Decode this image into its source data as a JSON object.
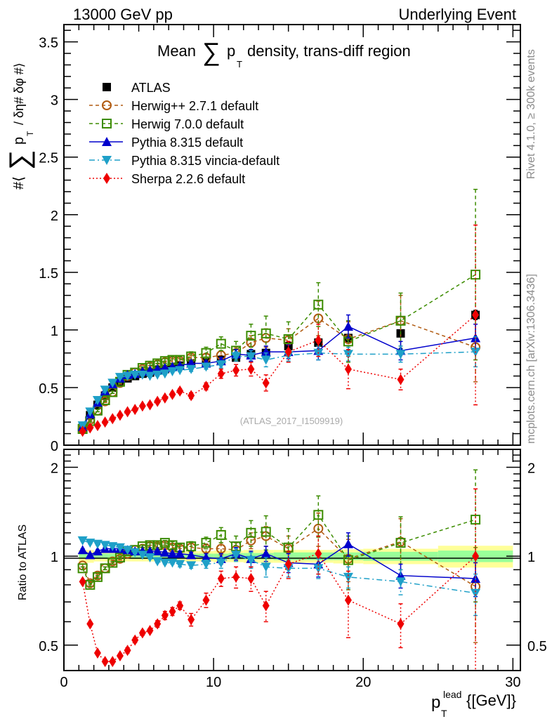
{
  "header": {
    "left": "13000 GeV pp",
    "right": "Underlying Event"
  },
  "side_labels": {
    "rivet": "Rivet 4.1.0, ≥ 300k events",
    "mcplots": "mcplots.cern.ch [arXiv:1306.3436]"
  },
  "chart_data": [
    {
      "type": "scatter",
      "title_prefix": "Mean",
      "title_sum": "∑",
      "title_p": "p",
      "title_sub": "T",
      "title_suffix": "density, trans-diff region",
      "ylabel_parts": [
        "#⟨",
        "∑",
        "p",
        "T",
        "/ δη# δφ #⟩"
      ],
      "xlabel": "p",
      "xlabel_sup": "lead",
      "xlabel_sub": "T",
      "xlabel_unit": "{[GeV]}",
      "watermark": "(ATLAS_2017_I1509919)",
      "xlim": [
        0,
        30.5
      ],
      "ylim": [
        0,
        3.65
      ],
      "yticks": [
        0,
        0.5,
        1,
        1.5,
        2,
        2.5,
        3,
        3.5
      ],
      "ytick_labels": [
        "0",
        "0.5",
        "1",
        "1.5",
        "2",
        "2.5",
        "3",
        "3.5"
      ],
      "xticks": [
        0,
        10,
        20,
        30
      ],
      "xtick_labels": [
        "0",
        "10",
        "20",
        "30"
      ],
      "legend_position": "top-left",
      "x": [
        1.25,
        1.75,
        2.25,
        2.75,
        3.25,
        3.75,
        4.25,
        4.75,
        5.25,
        5.75,
        6.25,
        6.75,
        7.25,
        7.75,
        8.5,
        9.5,
        10.5,
        11.5,
        12.5,
        13.5,
        15,
        17,
        19,
        22.5,
        27.5
      ],
      "series": [
        {
          "name": "ATLAS",
          "key": "atlas",
          "color": "#000000",
          "marker": "square-filled",
          "line": "none",
          "values": [
            0.15,
            0.26,
            0.35,
            0.43,
            0.5,
            0.55,
            0.58,
            0.6,
            0.62,
            0.63,
            0.65,
            0.66,
            0.68,
            0.69,
            0.71,
            0.72,
            0.74,
            0.76,
            0.79,
            0.8,
            0.86,
            0.89,
            0.93,
            0.97,
            1.13
          ],
          "errors": [
            0.01,
            0.01,
            0.01,
            0.01,
            0.01,
            0.01,
            0.01,
            0.01,
            0.01,
            0.01,
            0.01,
            0.01,
            0.01,
            0.01,
            0.01,
            0.01,
            0.01,
            0.01,
            0.02,
            0.02,
            0.02,
            0.03,
            0.03,
            0.03,
            0.04
          ]
        },
        {
          "name": "Herwig++ 2.7.1 default",
          "key": "hwpp",
          "color": "#b05a10",
          "marker": "circle-open",
          "line": "dashed",
          "values": [
            0.14,
            0.22,
            0.3,
            0.38,
            0.46,
            0.54,
            0.6,
            0.63,
            0.66,
            0.68,
            0.7,
            0.72,
            0.73,
            0.73,
            0.76,
            0.76,
            0.78,
            0.8,
            0.89,
            0.93,
            0.91,
            1.1,
            0.92,
            1.08,
            0.85
          ],
          "errors": [
            0.01,
            0.01,
            0.01,
            0.01,
            0.01,
            0.01,
            0.01,
            0.01,
            0.01,
            0.01,
            0.01,
            0.01,
            0.02,
            0.02,
            0.02,
            0.03,
            0.04,
            0.05,
            0.06,
            0.08,
            0.1,
            0.15,
            0.15,
            0.22,
            0.3
          ]
        },
        {
          "name": "Herwig 7.0.0 default",
          "key": "hw7",
          "color": "#3c8c00",
          "marker": "square-open",
          "line": "dashed",
          "values": [
            0.14,
            0.21,
            0.3,
            0.39,
            0.46,
            0.55,
            0.61,
            0.63,
            0.67,
            0.69,
            0.71,
            0.73,
            0.74,
            0.74,
            0.77,
            0.8,
            0.88,
            0.82,
            0.95,
            0.97,
            0.92,
            1.22,
            0.9,
            1.08,
            1.48
          ],
          "errors": [
            0.01,
            0.01,
            0.01,
            0.01,
            0.01,
            0.01,
            0.01,
            0.01,
            0.01,
            0.02,
            0.02,
            0.02,
            0.03,
            0.03,
            0.04,
            0.05,
            0.06,
            0.08,
            0.1,
            0.15,
            0.15,
            0.19,
            0.18,
            0.24,
            0.74
          ]
        },
        {
          "name": "Pythia 8.315 default",
          "key": "py8",
          "color": "#0000cc",
          "marker": "triangle-up",
          "line": "solid",
          "values": [
            0.16,
            0.27,
            0.37,
            0.47,
            0.53,
            0.58,
            0.61,
            0.62,
            0.64,
            0.65,
            0.66,
            0.67,
            0.68,
            0.69,
            0.71,
            0.71,
            0.73,
            0.79,
            0.78,
            0.81,
            0.81,
            0.82,
            1.03,
            0.82,
            0.93
          ],
          "errors": [
            0.01,
            0.01,
            0.01,
            0.01,
            0.01,
            0.01,
            0.01,
            0.01,
            0.01,
            0.01,
            0.01,
            0.01,
            0.01,
            0.01,
            0.02,
            0.02,
            0.03,
            0.04,
            0.05,
            0.05,
            0.06,
            0.08,
            0.1,
            0.08,
            0.12
          ]
        },
        {
          "name": "Pythia 8.315 vincia-default",
          "key": "vincia",
          "color": "#1fa0c8",
          "marker": "triangle-down",
          "line": "dashdot",
          "values": [
            0.17,
            0.29,
            0.39,
            0.48,
            0.54,
            0.59,
            0.6,
            0.61,
            0.61,
            0.6,
            0.61,
            0.62,
            0.64,
            0.65,
            0.66,
            0.68,
            0.7,
            0.77,
            0.77,
            0.74,
            0.78,
            0.8,
            0.79,
            0.79,
            0.81
          ],
          "errors": [
            0.01,
            0.01,
            0.01,
            0.01,
            0.01,
            0.01,
            0.01,
            0.01,
            0.01,
            0.01,
            0.01,
            0.01,
            0.01,
            0.01,
            0.02,
            0.02,
            0.03,
            0.04,
            0.05,
            0.06,
            0.05,
            0.06,
            0.06,
            0.07,
            0.13
          ]
        },
        {
          "name": "Sherpa 2.2.6 default",
          "key": "sherpa",
          "color": "#ee0000",
          "marker": "diamond",
          "line": "dotted",
          "values": [
            0.12,
            0.15,
            0.17,
            0.2,
            0.23,
            0.26,
            0.29,
            0.31,
            0.34,
            0.35,
            0.38,
            0.41,
            0.44,
            0.47,
            0.43,
            0.51,
            0.62,
            0.65,
            0.66,
            0.54,
            0.81,
            0.91,
            0.66,
            0.57,
            1.13
          ],
          "errors": [
            0.005,
            0.005,
            0.005,
            0.005,
            0.005,
            0.005,
            0.01,
            0.01,
            0.01,
            0.01,
            0.01,
            0.015,
            0.02,
            0.02,
            0.025,
            0.03,
            0.04,
            0.05,
            0.06,
            0.07,
            0.09,
            0.14,
            0.17,
            0.09,
            0.78
          ]
        }
      ]
    },
    {
      "type": "scatter",
      "ylabel": "Ratio to ATLAS",
      "yscale": "log",
      "xlim": [
        0,
        30.5
      ],
      "ylim": [
        0.41,
        2.3
      ],
      "yticks": [
        0.5,
        1,
        2
      ],
      "ytick_labels": [
        "0.5",
        "1",
        "2"
      ],
      "band_edges": [
        1.0,
        1.5,
        2.0,
        2.5,
        3.0,
        3.5,
        4.0,
        4.5,
        5.0,
        5.5,
        6.0,
        6.5,
        7.0,
        7.5,
        8.0,
        9.0,
        10.0,
        11.0,
        12.0,
        13.0,
        14.0,
        16.0,
        18.0,
        20.0,
        25.0,
        30.0
      ],
      "band_stat": [
        0.02,
        0.02,
        0.02,
        0.02,
        0.02,
        0.02,
        0.02,
        0.02,
        0.02,
        0.02,
        0.02,
        0.02,
        0.02,
        0.02,
        0.02,
        0.02,
        0.02,
        0.025,
        0.025,
        0.025,
        0.03,
        0.03,
        0.03,
        0.035,
        0.045
      ],
      "band_total": [
        0.05,
        0.05,
        0.04,
        0.04,
        0.04,
        0.04,
        0.04,
        0.04,
        0.04,
        0.04,
        0.04,
        0.04,
        0.04,
        0.04,
        0.04,
        0.04,
        0.045,
        0.045,
        0.05,
        0.05,
        0.05,
        0.05,
        0.055,
        0.06,
        0.085
      ],
      "band_colors": {
        "total": "#ffff99",
        "stat": "#99ff99"
      },
      "series": [
        {
          "key": "hwpp",
          "values": [
            0.93,
            0.81,
            0.86,
            0.91,
            0.96,
            0.98,
            1.02,
            1.05,
            1.06,
            1.08,
            1.08,
            1.09,
            1.07,
            1.06,
            1.07,
            1.06,
            1.06,
            1.05,
            1.13,
            1.17,
            1.06,
            1.24,
            0.98,
            1.12,
            0.79
          ],
          "errors": [
            0.01,
            0.01,
            0.01,
            0.01,
            0.01,
            0.01,
            0.01,
            0.01,
            0.01,
            0.01,
            0.02,
            0.02,
            0.02,
            0.02,
            0.03,
            0.04,
            0.05,
            0.06,
            0.07,
            0.09,
            0.11,
            0.16,
            0.16,
            0.22,
            0.28
          ]
        },
        {
          "key": "hw7",
          "values": [
            0.91,
            0.8,
            0.85,
            0.91,
            0.95,
            0.99,
            1.04,
            1.05,
            1.08,
            1.09,
            1.09,
            1.11,
            1.09,
            1.07,
            1.08,
            1.11,
            1.18,
            1.08,
            1.2,
            1.21,
            1.07,
            1.38,
            0.97,
            1.11,
            1.33
          ],
          "errors": [
            0.01,
            0.01,
            0.01,
            0.01,
            0.01,
            0.01,
            0.01,
            0.01,
            0.01,
            0.02,
            0.02,
            0.02,
            0.03,
            0.03,
            0.04,
            0.05,
            0.07,
            0.09,
            0.12,
            0.16,
            0.17,
            0.22,
            0.2,
            0.25,
            0.63
          ]
        },
        {
          "key": "py8",
          "values": [
            1.05,
            1.01,
            1.04,
            1.06,
            1.06,
            1.06,
            1.05,
            1.04,
            1.04,
            1.04,
            1.04,
            1.03,
            1.02,
            1.02,
            1.01,
            0.99,
            0.98,
            1.02,
            0.98,
            1.02,
            0.95,
            0.94,
            1.1,
            0.86,
            0.84
          ],
          "errors": [
            0.01,
            0.01,
            0.01,
            0.01,
            0.01,
            0.01,
            0.01,
            0.01,
            0.01,
            0.01,
            0.01,
            0.01,
            0.01,
            0.02,
            0.02,
            0.03,
            0.04,
            0.05,
            0.06,
            0.06,
            0.07,
            0.09,
            0.1,
            0.08,
            0.11
          ]
        },
        {
          "key": "vincia",
          "values": [
            1.13,
            1.11,
            1.1,
            1.09,
            1.08,
            1.07,
            1.05,
            1.03,
            1.01,
            0.99,
            0.96,
            0.95,
            0.95,
            0.94,
            0.93,
            0.94,
            0.95,
            1.01,
            0.97,
            0.92,
            0.91,
            0.91,
            0.85,
            0.82,
            0.75
          ],
          "errors": [
            0.01,
            0.01,
            0.01,
            0.01,
            0.01,
            0.01,
            0.01,
            0.01,
            0.01,
            0.01,
            0.01,
            0.01,
            0.01,
            0.02,
            0.02,
            0.03,
            0.04,
            0.05,
            0.06,
            0.07,
            0.06,
            0.07,
            0.07,
            0.08,
            0.12
          ]
        },
        {
          "key": "sherpa",
          "values": [
            0.82,
            0.59,
            0.47,
            0.44,
            0.44,
            0.46,
            0.48,
            0.52,
            0.55,
            0.56,
            0.59,
            0.63,
            0.65,
            0.68,
            0.61,
            0.71,
            0.84,
            0.85,
            0.84,
            0.68,
            0.94,
            1.02,
            0.71,
            0.59,
            1.0
          ],
          "errors": [
            0.005,
            0.005,
            0.005,
            0.005,
            0.005,
            0.005,
            0.01,
            0.01,
            0.01,
            0.01,
            0.015,
            0.02,
            0.02,
            0.02,
            0.03,
            0.04,
            0.05,
            0.07,
            0.08,
            0.08,
            0.1,
            0.15,
            0.18,
            0.1,
            0.69
          ]
        }
      ]
    }
  ]
}
